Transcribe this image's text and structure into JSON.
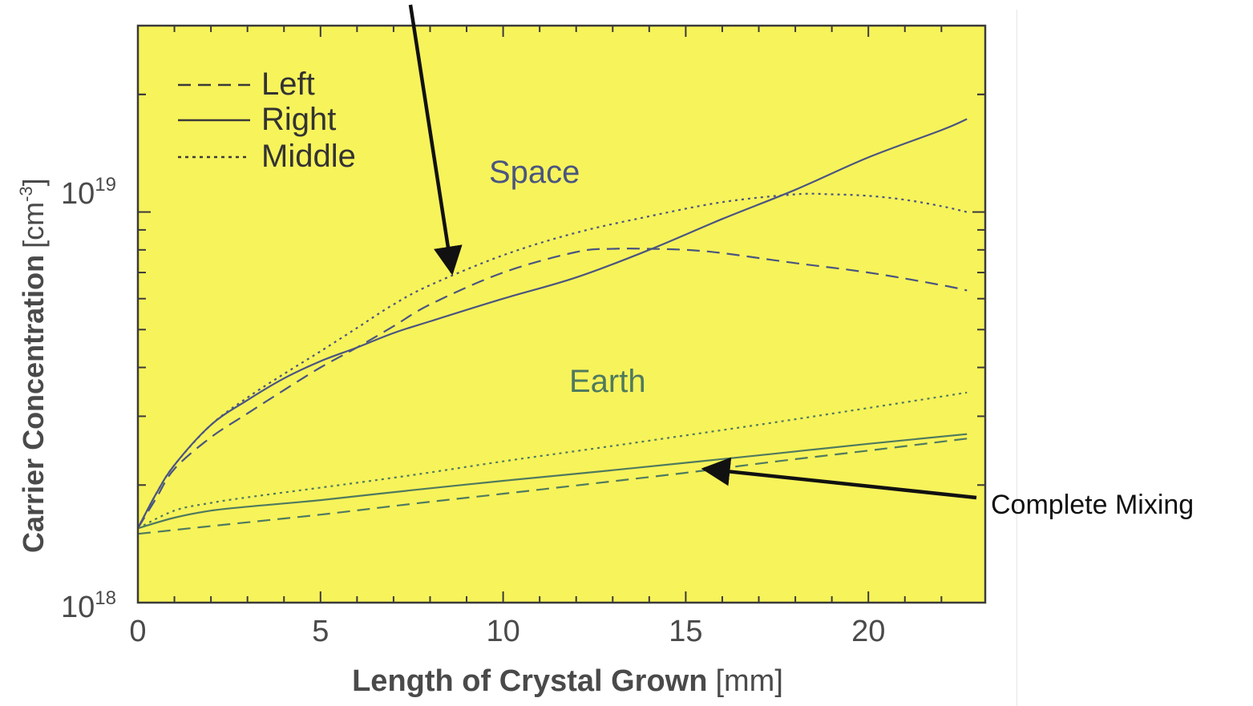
{
  "chart_data": {
    "type": "line",
    "xlabel": "Length of Crystal Grown",
    "xlabel_unit": "[mm]",
    "ylabel": "Carrier Concentration",
    "ylabel_unit_prefix": "[cm",
    "ylabel_unit_exp": "-3",
    "ylabel_unit_suffix": "]",
    "x_ticks": [
      "0",
      "5",
      "10",
      "15",
      "20"
    ],
    "xlim": [
      0,
      23.2
    ],
    "y_scale": "log",
    "ylim": [
      1e+18,
      3e+19
    ],
    "y_tick_labels": [
      {
        "value": 1e+18,
        "base": "10",
        "exp": "18"
      },
      {
        "value": 1e+19,
        "base": "10",
        "exp": "19"
      }
    ],
    "legend": {
      "placement": "top-left",
      "entries": [
        {
          "label": "Left",
          "style": "dashed"
        },
        {
          "label": "Right",
          "style": "solid"
        },
        {
          "label": "Middle",
          "style": "dotted"
        }
      ]
    },
    "groups": [
      {
        "label": "Space",
        "color": "#4a5580"
      },
      {
        "label": "Earth",
        "color": "#4f7a5e"
      }
    ],
    "series": [
      {
        "group": "Space",
        "style": "dotted",
        "x": [
          0,
          0.5,
          1,
          2,
          3,
          4,
          5,
          6,
          7,
          8,
          10,
          12,
          14,
          16,
          18,
          19,
          20,
          21,
          22,
          22.7
        ],
        "y": [
          1.55e+18,
          1.9e+18,
          2.25e+18,
          2.85e+18,
          3.35e+18,
          3.85e+18,
          4.4e+18,
          5.05e+18,
          5.8e+18,
          6.5e+18,
          7.75e+18,
          8.85e+18,
          9.75e+18,
          1.06e+19,
          1.11e+19,
          1.11e+19,
          1.1e+19,
          1.075e+19,
          1.035e+19,
          1e+19
        ]
      },
      {
        "group": "Space",
        "style": "solid",
        "x": [
          0,
          0.5,
          1,
          2,
          3,
          4,
          5,
          6,
          7,
          8,
          10,
          12,
          14,
          16,
          18,
          20,
          22,
          22.7
        ],
        "y": [
          1.55e+18,
          1.9e+18,
          2.25e+18,
          2.85e+18,
          3.3e+18,
          3.75e+18,
          4.15e+18,
          4.5e+18,
          4.9e+18,
          5.25e+18,
          6e+18,
          6.8e+18,
          8e+18,
          9.6e+18,
          1.14e+19,
          1.38e+19,
          1.62e+19,
          1.73e+19
        ]
      },
      {
        "group": "Space",
        "style": "dashed",
        "x": [
          0,
          0.5,
          1,
          2,
          3,
          4,
          5,
          6,
          7,
          8,
          10,
          12,
          13,
          14,
          15,
          16,
          18,
          20,
          22,
          22.7
        ],
        "y": [
          1.55e+18,
          1.85e+18,
          2.2e+18,
          2.65e+18,
          3.05e+18,
          3.5e+18,
          4e+18,
          4.5e+18,
          5.1e+18,
          5.8e+18,
          7e+18,
          7.9e+18,
          8.05e+18,
          8.05e+18,
          8e+18,
          7.85e+18,
          7.4e+18,
          7e+18,
          6.5e+18,
          6.3e+18
        ]
      },
      {
        "group": "Earth",
        "style": "dotted",
        "x": [
          0,
          1,
          2,
          3,
          5,
          7.5,
          10,
          12.5,
          15,
          17.5,
          20,
          22.7
        ],
        "y": [
          1.55e+18,
          1.72e+18,
          1.8e+18,
          1.86e+18,
          1.97e+18,
          2.12e+18,
          2.3e+18,
          2.48e+18,
          2.68e+18,
          2.9e+18,
          3.15e+18,
          3.45e+18
        ]
      },
      {
        "group": "Earth",
        "style": "solid",
        "x": [
          0,
          1,
          2,
          3,
          5,
          7.5,
          10,
          12.5,
          15,
          17.5,
          20,
          22.7
        ],
        "y": [
          1.55e+18,
          1.65e+18,
          1.72e+18,
          1.76e+18,
          1.83e+18,
          1.94e+18,
          2.05e+18,
          2.16e+18,
          2.28e+18,
          2.41e+18,
          2.55e+18,
          2.7e+18
        ]
      },
      {
        "group": "Earth",
        "style": "dashed",
        "x": [
          0,
          2,
          5,
          7.5,
          10,
          12.5,
          15,
          17.5,
          20,
          22.7
        ],
        "y": [
          1.5e+18,
          1.57e+18,
          1.68e+18,
          1.79e+18,
          1.9e+18,
          2.02e+18,
          2.15e+18,
          2.3e+18,
          2.45e+18,
          2.63e+18
        ]
      }
    ],
    "annotations": [
      {
        "text": "Complete Mixing",
        "point_x": 15.5,
        "point_y": 2.2e+18
      },
      {
        "text": "",
        "point_x": 8.6,
        "point_y": 7e+18
      }
    ]
  },
  "colors": {
    "plot_background": "#f7f35b",
    "frame": "#3a3a3a",
    "text": "#4a4a4a",
    "arrow": "#111111"
  }
}
